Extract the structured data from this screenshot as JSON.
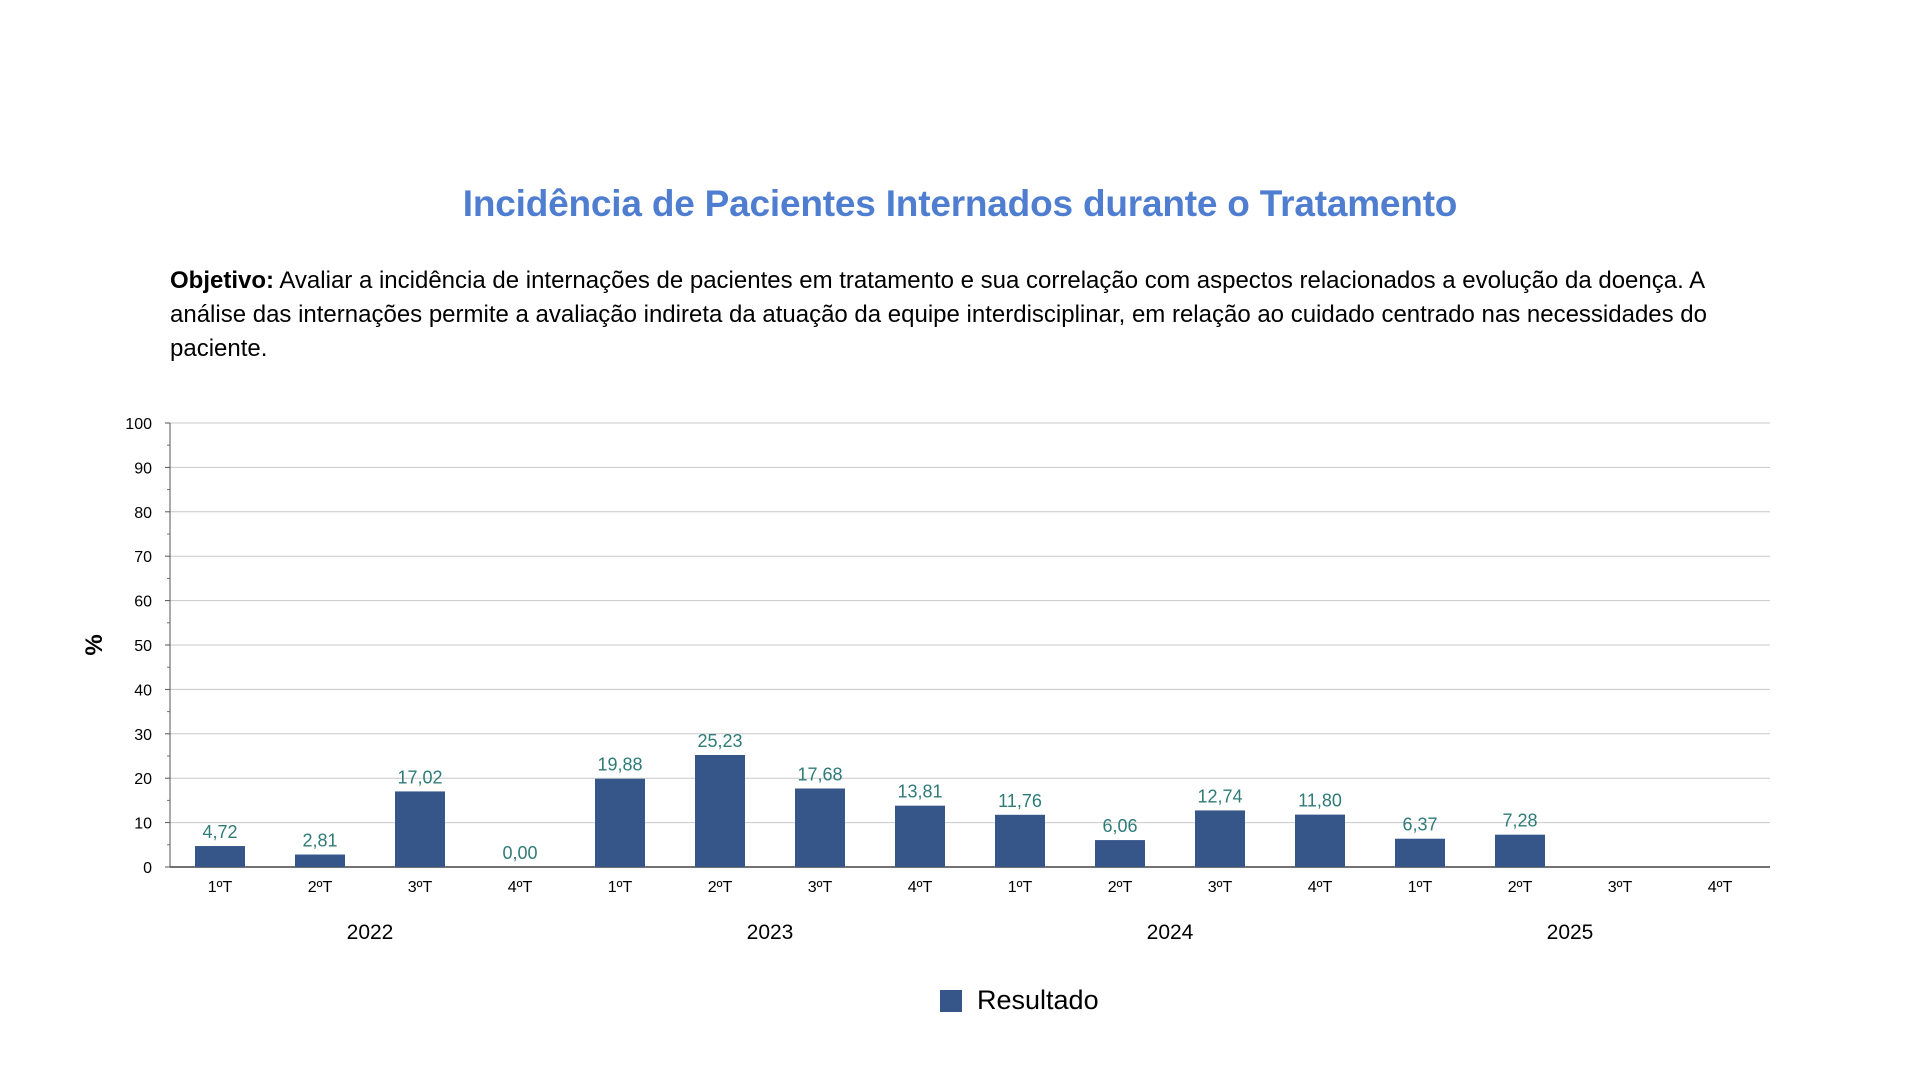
{
  "page": {
    "title": "Incidência de Pacientes Internados durante o Tratamento",
    "objective_label": "Objetivo:",
    "objective_text": " Avaliar a incidência de internações de pacientes em tratamento e sua correlação com aspectos relacionados a evolução da doença. A análise das internações permite a avaliação indireta da atuação da equipe interdisciplinar, em relação ao cuidado centrado nas necessidades do paciente."
  },
  "colors": {
    "title": "#4f7ed0",
    "bar": "#365589",
    "data_label": "#2e7b78",
    "grid": "#c8c8c8"
  },
  "chart_data": {
    "type": "bar",
    "ylabel": "%",
    "ylim": [
      0,
      100
    ],
    "yticks": [
      0,
      10,
      20,
      30,
      40,
      50,
      60,
      70,
      80,
      90,
      100
    ],
    "grid": true,
    "legend_position": "bottom",
    "categories": [
      "1ºT",
      "2ºT",
      "3ºT",
      "4ºT",
      "1ºT",
      "2ºT",
      "3ºT",
      "4ºT",
      "1ºT",
      "2ºT",
      "3ºT",
      "4ºT",
      "1ºT",
      "2ºT",
      "3ºT",
      "4ºT"
    ],
    "groups": [
      {
        "label": "2022",
        "span": 4
      },
      {
        "label": "2023",
        "span": 4
      },
      {
        "label": "2024",
        "span": 4
      },
      {
        "label": "2025",
        "span": 4
      }
    ],
    "series": [
      {
        "name": "Resultado",
        "values": [
          4.72,
          2.81,
          17.02,
          0.0,
          19.88,
          25.23,
          17.68,
          13.81,
          11.76,
          6.06,
          12.74,
          11.8,
          6.37,
          7.28,
          null,
          null
        ],
        "labels": [
          "4,72",
          "2,81",
          "17,02",
          "0,00",
          "19,88",
          "25,23",
          "17,68",
          "13,81",
          "11,76",
          "6,06",
          "12,74",
          "11,80",
          "6,37",
          "7,28",
          "",
          ""
        ]
      }
    ]
  }
}
